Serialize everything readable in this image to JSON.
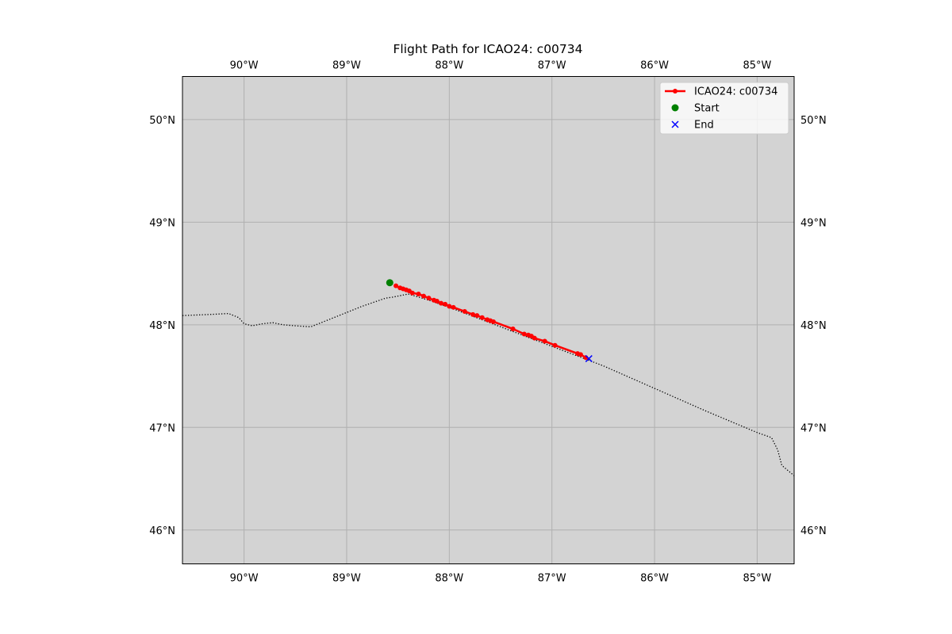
{
  "chart_data": {
    "type": "scatter",
    "title": "Flight Path for ICAO24: c00734",
    "xlabel": "",
    "ylabel": "",
    "projection": "plate-carree",
    "xlim": [
      -90.6,
      -84.64
    ],
    "ylim": [
      45.67,
      50.42
    ],
    "grid": true,
    "background_color": "#d3d3d3",
    "grid_color": "#b0b0b0",
    "legend_position": "top-right",
    "x_ticks": [
      {
        "value": -90,
        "label": "90°W"
      },
      {
        "value": -89,
        "label": "89°W"
      },
      {
        "value": -88,
        "label": "88°W"
      },
      {
        "value": -87,
        "label": "87°W"
      },
      {
        "value": -86,
        "label": "86°W"
      },
      {
        "value": -85,
        "label": "85°W"
      }
    ],
    "y_ticks": [
      {
        "value": 46,
        "label": "46°N"
      },
      {
        "value": 47,
        "label": "47°N"
      },
      {
        "value": 48,
        "label": "48°N"
      },
      {
        "value": 49,
        "label": "49°N"
      },
      {
        "value": 50,
        "label": "50°N"
      }
    ],
    "series": [
      {
        "name": "ICAO24: c00734",
        "kind": "line-markers",
        "color": "#ff0000",
        "lon": [
          -88.52,
          -88.48,
          -88.45,
          -88.42,
          -88.39,
          -88.36,
          -88.3,
          -88.25,
          -88.2,
          -88.15,
          -88.12,
          -88.08,
          -88.04,
          -88.0,
          -87.96,
          -87.85,
          -87.77,
          -87.73,
          -87.68,
          -87.63,
          -87.6,
          -87.57,
          -87.38,
          -87.27,
          -87.23,
          -87.2,
          -87.17,
          -87.07,
          -86.97,
          -86.75,
          -86.72,
          -86.67
        ],
        "lat": [
          48.38,
          48.36,
          48.35,
          48.34,
          48.33,
          48.31,
          48.3,
          48.28,
          48.26,
          48.24,
          48.23,
          48.21,
          48.2,
          48.18,
          48.17,
          48.13,
          48.1,
          48.09,
          48.07,
          48.05,
          48.04,
          48.03,
          47.96,
          47.91,
          47.9,
          47.89,
          47.87,
          47.84,
          47.8,
          47.72,
          47.71,
          47.68
        ]
      },
      {
        "name": "Start",
        "kind": "marker",
        "marker": "circle",
        "color": "#008000",
        "lon": [
          -88.58
        ],
        "lat": [
          48.41
        ]
      },
      {
        "name": "End",
        "kind": "marker",
        "marker": "x",
        "color": "#0000ff",
        "lon": [
          -86.64
        ],
        "lat": [
          47.67
        ]
      }
    ],
    "border": {
      "style": "dotted",
      "color": "#000000",
      "lon": [
        -90.6,
        -90.35,
        -90.15,
        -90.05,
        -90.0,
        -89.92,
        -89.82,
        -89.72,
        -89.62,
        -89.5,
        -89.35,
        -89.1,
        -88.85,
        -88.62,
        -88.55,
        -88.4,
        -88.2,
        -88.0,
        -87.5,
        -87.0,
        -86.5,
        -86.0,
        -85.5,
        -85.0,
        -84.86,
        -84.8,
        -84.76,
        -84.64
      ],
      "lat": [
        48.09,
        48.1,
        48.11,
        48.07,
        48.01,
        47.99,
        48.01,
        48.02,
        48.0,
        47.99,
        47.98,
        48.08,
        48.18,
        48.26,
        48.27,
        48.3,
        48.24,
        48.17,
        47.98,
        47.79,
        47.6,
        47.38,
        47.16,
        46.95,
        46.9,
        46.78,
        46.63,
        46.53
      ]
    }
  }
}
